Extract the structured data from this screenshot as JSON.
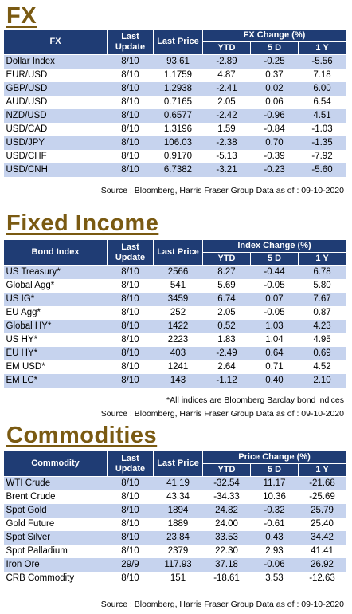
{
  "fx": {
    "title": "FX",
    "headers": {
      "name": "FX",
      "last_update": "Last Update",
      "last_price": "Last Price",
      "group": "FX Change (%)",
      "ytd": "YTD",
      "d5": "5 D",
      "y1": "1 Y"
    },
    "rows": [
      {
        "name": "Dollar Index",
        "date": "8/10",
        "price": "93.61",
        "ytd": "-2.89",
        "d5": "-0.25",
        "y1": "-5.56"
      },
      {
        "name": "EUR/USD",
        "date": "8/10",
        "price": "1.1759",
        "ytd": "4.87",
        "d5": "0.37",
        "y1": "7.18"
      },
      {
        "name": "GBP/USD",
        "date": "8/10",
        "price": "1.2938",
        "ytd": "-2.41",
        "d5": "0.02",
        "y1": "6.00"
      },
      {
        "name": "AUD/USD",
        "date": "8/10",
        "price": "0.7165",
        "ytd": "2.05",
        "d5": "0.06",
        "y1": "6.54"
      },
      {
        "name": "NZD/USD",
        "date": "8/10",
        "price": "0.6577",
        "ytd": "-2.42",
        "d5": "-0.96",
        "y1": "4.51"
      },
      {
        "name": "USD/CAD",
        "date": "8/10",
        "price": "1.3196",
        "ytd": "1.59",
        "d5": "-0.84",
        "y1": "-1.03"
      },
      {
        "name": "USD/JPY",
        "date": "8/10",
        "price": "106.03",
        "ytd": "-2.38",
        "d5": "0.70",
        "y1": "-1.35"
      },
      {
        "name": "USD/CHF",
        "date": "8/10",
        "price": "0.9170",
        "ytd": "-5.13",
        "d5": "-0.39",
        "y1": "-7.92"
      },
      {
        "name": "USD/CNH",
        "date": "8/10",
        "price": "6.7382",
        "ytd": "-3.21",
        "d5": "-0.23",
        "y1": "-5.60"
      }
    ],
    "source": "Source : Bloomberg, Harris Fraser Group Data as of : 09-10-2020"
  },
  "fixed_income": {
    "title": "Fixed Income",
    "headers": {
      "name": "Bond Index",
      "last_update": "Last Update",
      "last_price": "Last Price",
      "group": "Index Change (%)",
      "ytd": "YTD",
      "d5": "5 D",
      "y1": "1 Y"
    },
    "rows": [
      {
        "name": "US Treasury*",
        "date": "8/10",
        "price": "2566",
        "ytd": "8.27",
        "d5": "-0.44",
        "y1": "6.78"
      },
      {
        "name": "Global Agg*",
        "date": "8/10",
        "price": "541",
        "ytd": "5.69",
        "d5": "-0.05",
        "y1": "5.80"
      },
      {
        "name": "US IG*",
        "date": "8/10",
        "price": "3459",
        "ytd": "6.74",
        "d5": "0.07",
        "y1": "7.67"
      },
      {
        "name": "EU Agg*",
        "date": "8/10",
        "price": "252",
        "ytd": "2.05",
        "d5": "-0.05",
        "y1": "0.87"
      },
      {
        "name": "Global HY*",
        "date": "8/10",
        "price": "1422",
        "ytd": "0.52",
        "d5": "1.03",
        "y1": "4.23"
      },
      {
        "name": "US HY*",
        "date": "8/10",
        "price": "2223",
        "ytd": "1.83",
        "d5": "1.04",
        "y1": "4.95"
      },
      {
        "name": "EU HY*",
        "date": "8/10",
        "price": "403",
        "ytd": "-2.49",
        "d5": "0.64",
        "y1": "0.69"
      },
      {
        "name": "EM USD*",
        "date": "8/10",
        "price": "1241",
        "ytd": "2.64",
        "d5": "0.71",
        "y1": "4.52"
      },
      {
        "name": "EM LC*",
        "date": "8/10",
        "price": "143",
        "ytd": "-1.12",
        "d5": "0.40",
        "y1": "2.10"
      }
    ],
    "footnote": "*All indices are Bloomberg Barclay bond indices",
    "source": "Source : Bloomberg, Harris Fraser Group Data as of : 09-10-2020"
  },
  "commodities": {
    "title": "Commodities",
    "headers": {
      "name": "Commodity",
      "last_update": "Last Update",
      "last_price": "Last Price",
      "group": "Price Change (%)",
      "ytd": "YTD",
      "d5": "5 D",
      "y1": "1 Y"
    },
    "rows": [
      {
        "name": "WTI Crude",
        "date": "8/10",
        "price": "41.19",
        "ytd": "-32.54",
        "d5": "11.17",
        "y1": "-21.68"
      },
      {
        "name": "Brent Crude",
        "date": "8/10",
        "price": "43.34",
        "ytd": "-34.33",
        "d5": "10.36",
        "y1": "-25.69"
      },
      {
        "name": "Spot Gold",
        "date": "8/10",
        "price": "1894",
        "ytd": "24.82",
        "d5": "-0.32",
        "y1": "25.79"
      },
      {
        "name": "Gold Future",
        "date": "8/10",
        "price": "1889",
        "ytd": "24.00",
        "d5": "-0.61",
        "y1": "25.40"
      },
      {
        "name": "Spot Silver",
        "date": "8/10",
        "price": "23.84",
        "ytd": "33.53",
        "d5": "0.43",
        "y1": "34.42"
      },
      {
        "name": "Spot Palladium",
        "date": "8/10",
        "price": "2379",
        "ytd": "22.30",
        "d5": "2.93",
        "y1": "41.41"
      },
      {
        "name": "Iron Ore",
        "date": "29/9",
        "price": "117.93",
        "ytd": "37.18",
        "d5": "-0.06",
        "y1": "26.92"
      },
      {
        "name": "CRB Commodity",
        "date": "8/10",
        "price": "151",
        "ytd": "-18.61",
        "d5": "3.53",
        "y1": "-12.63"
      }
    ],
    "source": "Source : Bloomberg, Harris Fraser Group Data as of : 09-10-2020"
  },
  "colors": {
    "header_bg": "#1f3c74",
    "alt_row": "#c6d3ee",
    "title": "#7a5a12"
  }
}
